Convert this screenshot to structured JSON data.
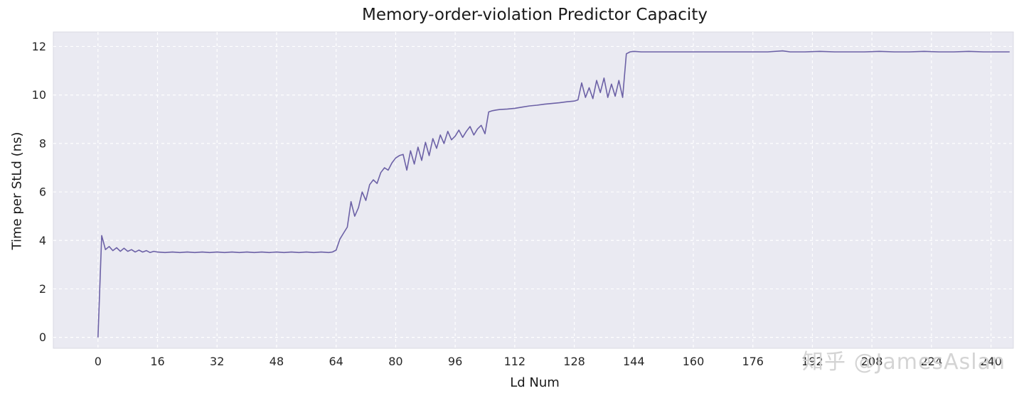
{
  "title": "Memory-order-violation Predictor Capacity",
  "watermark": "知乎 @JamesAslan",
  "chart_data": {
    "type": "line",
    "title": "Memory-order-violation Predictor Capacity",
    "xlabel": "Ld Num",
    "ylabel": "Time per StLd (ns)",
    "xlim": [
      -12,
      246
    ],
    "ylim": [
      -0.45,
      12.6
    ],
    "x_ticks": [
      0,
      16,
      32,
      48,
      64,
      80,
      96,
      112,
      128,
      144,
      160,
      176,
      192,
      208,
      224,
      240
    ],
    "y_ticks": [
      0,
      2,
      4,
      6,
      8,
      10,
      12
    ],
    "grid": true,
    "grid_style": "dashed",
    "legend": "none",
    "line_color": "#6c61a6",
    "plot_bg": "#eaeaf2",
    "grid_color": "#ffffff",
    "points": [
      [
        0,
        0
      ],
      [
        1,
        4.2
      ],
      [
        2,
        3.62
      ],
      [
        3,
        3.75
      ],
      [
        4,
        3.58
      ],
      [
        5,
        3.7
      ],
      [
        6,
        3.55
      ],
      [
        7,
        3.68
      ],
      [
        8,
        3.55
      ],
      [
        9,
        3.62
      ],
      [
        10,
        3.52
      ],
      [
        11,
        3.6
      ],
      [
        12,
        3.52
      ],
      [
        13,
        3.58
      ],
      [
        14,
        3.5
      ],
      [
        15,
        3.55
      ],
      [
        16,
        3.52
      ],
      [
        18,
        3.5
      ],
      [
        20,
        3.52
      ],
      [
        22,
        3.5
      ],
      [
        24,
        3.52
      ],
      [
        26,
        3.5
      ],
      [
        28,
        3.52
      ],
      [
        30,
        3.5
      ],
      [
        32,
        3.52
      ],
      [
        34,
        3.5
      ],
      [
        36,
        3.52
      ],
      [
        38,
        3.5
      ],
      [
        40,
        3.52
      ],
      [
        42,
        3.5
      ],
      [
        44,
        3.52
      ],
      [
        46,
        3.5
      ],
      [
        48,
        3.52
      ],
      [
        50,
        3.5
      ],
      [
        52,
        3.52
      ],
      [
        54,
        3.5
      ],
      [
        56,
        3.52
      ],
      [
        58,
        3.5
      ],
      [
        60,
        3.52
      ],
      [
        62,
        3.5
      ],
      [
        63,
        3.52
      ],
      [
        64,
        3.6
      ],
      [
        65,
        4.05
      ],
      [
        66,
        4.3
      ],
      [
        67,
        4.55
      ],
      [
        68,
        5.6
      ],
      [
        69,
        5.0
      ],
      [
        70,
        5.35
      ],
      [
        71,
        6.0
      ],
      [
        72,
        5.65
      ],
      [
        73,
        6.3
      ],
      [
        74,
        6.5
      ],
      [
        75,
        6.35
      ],
      [
        76,
        6.8
      ],
      [
        77,
        7.0
      ],
      [
        78,
        6.9
      ],
      [
        79,
        7.2
      ],
      [
        80,
        7.4
      ],
      [
        81,
        7.5
      ],
      [
        82,
        7.55
      ],
      [
        83,
        6.9
      ],
      [
        84,
        7.7
      ],
      [
        85,
        7.15
      ],
      [
        86,
        7.85
      ],
      [
        87,
        7.3
      ],
      [
        88,
        8.05
      ],
      [
        89,
        7.5
      ],
      [
        90,
        8.2
      ],
      [
        91,
        7.8
      ],
      [
        92,
        8.35
      ],
      [
        93,
        8.0
      ],
      [
        94,
        8.5
      ],
      [
        95,
        8.15
      ],
      [
        96,
        8.3
      ],
      [
        97,
        8.55
      ],
      [
        98,
        8.25
      ],
      [
        99,
        8.5
      ],
      [
        100,
        8.7
      ],
      [
        101,
        8.35
      ],
      [
        102,
        8.6
      ],
      [
        103,
        8.75
      ],
      [
        104,
        8.4
      ],
      [
        105,
        9.3
      ],
      [
        106,
        9.35
      ],
      [
        107,
        9.38
      ],
      [
        108,
        9.4
      ],
      [
        110,
        9.42
      ],
      [
        112,
        9.45
      ],
      [
        114,
        9.5
      ],
      [
        116,
        9.55
      ],
      [
        118,
        9.58
      ],
      [
        120,
        9.62
      ],
      [
        122,
        9.65
      ],
      [
        124,
        9.68
      ],
      [
        126,
        9.72
      ],
      [
        128,
        9.75
      ],
      [
        129,
        9.8
      ],
      [
        130,
        10.5
      ],
      [
        131,
        9.9
      ],
      [
        132,
        10.3
      ],
      [
        133,
        9.85
      ],
      [
        134,
        10.6
      ],
      [
        135,
        10.1
      ],
      [
        136,
        10.7
      ],
      [
        137,
        9.9
      ],
      [
        138,
        10.45
      ],
      [
        139,
        9.95
      ],
      [
        140,
        10.6
      ],
      [
        141,
        9.9
      ],
      [
        142,
        11.7
      ],
      [
        143,
        11.78
      ],
      [
        144,
        11.8
      ],
      [
        146,
        11.78
      ],
      [
        148,
        11.78
      ],
      [
        152,
        11.78
      ],
      [
        156,
        11.78
      ],
      [
        160,
        11.78
      ],
      [
        164,
        11.78
      ],
      [
        168,
        11.78
      ],
      [
        172,
        11.78
      ],
      [
        176,
        11.78
      ],
      [
        180,
        11.78
      ],
      [
        184,
        11.82
      ],
      [
        186,
        11.78
      ],
      [
        190,
        11.78
      ],
      [
        194,
        11.8
      ],
      [
        198,
        11.78
      ],
      [
        202,
        11.78
      ],
      [
        206,
        11.78
      ],
      [
        210,
        11.8
      ],
      [
        214,
        11.78
      ],
      [
        218,
        11.78
      ],
      [
        222,
        11.8
      ],
      [
        226,
        11.78
      ],
      [
        230,
        11.78
      ],
      [
        234,
        11.8
      ],
      [
        238,
        11.78
      ],
      [
        242,
        11.78
      ],
      [
        245,
        11.78
      ]
    ]
  }
}
